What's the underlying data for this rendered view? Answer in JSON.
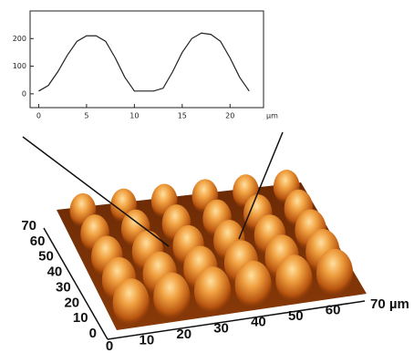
{
  "chart_data": {
    "type": "line",
    "x": [
      0,
      1,
      2,
      3,
      4,
      5,
      6,
      7,
      8,
      9,
      10,
      11,
      12,
      13,
      14,
      15,
      16,
      17,
      18,
      19,
      20,
      21,
      22
    ],
    "values": [
      10,
      30,
      80,
      140,
      190,
      210,
      210,
      190,
      130,
      60,
      10,
      10,
      10,
      20,
      80,
      150,
      200,
      220,
      215,
      190,
      130,
      60,
      10
    ],
    "color": "#222222",
    "xlim": [
      -0.9,
      23.5
    ],
    "xticks": [
      0,
      5,
      10,
      15,
      20
    ],
    "x_unit": "µm",
    "ylim": [
      -50,
      300
    ],
    "yticks": [
      0,
      100,
      200
    ]
  },
  "surface": {
    "y_axis_labels": [
      "70",
      "60",
      "50",
      "40",
      "30",
      "20",
      "10",
      "0"
    ],
    "x_axis_labels": [
      "0",
      "10",
      "20",
      "30",
      "40",
      "50",
      "60",
      "70 µm"
    ]
  }
}
